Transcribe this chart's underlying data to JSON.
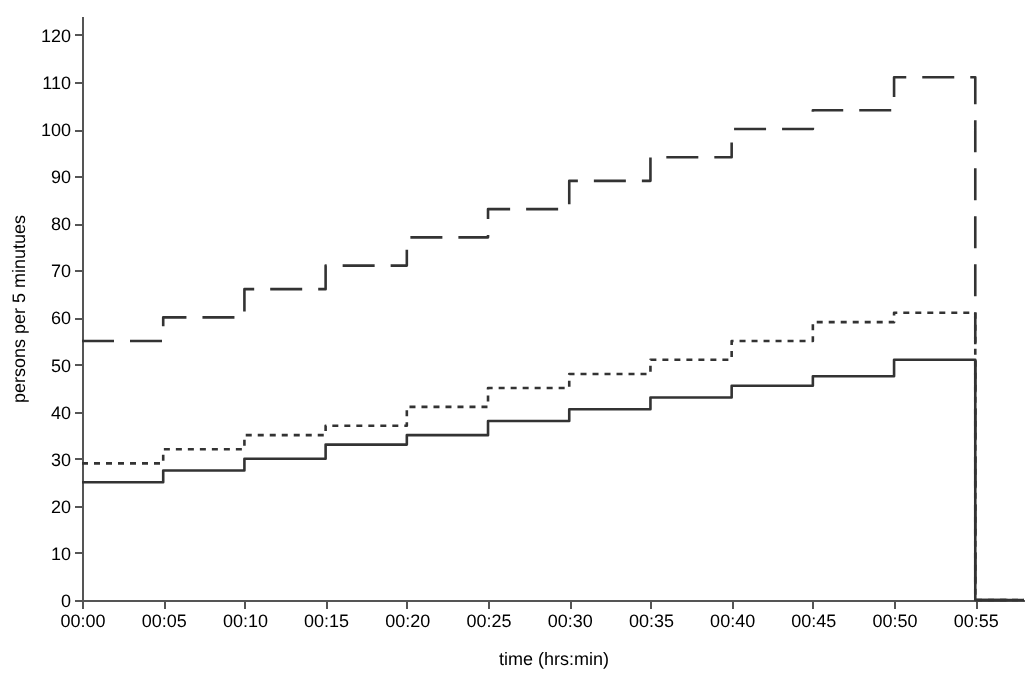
{
  "chart_data": {
    "type": "step",
    "xlabel": "time (hrs:min)",
    "ylabel": "persons per 5 minutues",
    "x": [
      0,
      0.083333,
      0.166667,
      0.25,
      0.333333,
      0.416667,
      0.5,
      0.583333,
      0.666667,
      0.75,
      0.833333,
      0.916667,
      0.966667
    ],
    "series": [
      {
        "color": "#333333",
        "line_style": "dashed",
        "values": [
          55,
          60,
          66,
          71,
          77,
          83,
          89,
          94,
          100,
          104,
          111,
          0,
          0
        ]
      },
      {
        "color": "#333333",
        "line_style": "dotted",
        "values": [
          29,
          32,
          35,
          37,
          41,
          45,
          48,
          51,
          55,
          59,
          61,
          0,
          0
        ]
      },
      {
        "color": "#333333",
        "line_style": "solid",
        "values": [
          25,
          27.5,
          30,
          33,
          35,
          38,
          40.5,
          43,
          45.5,
          47.5,
          51,
          0,
          0
        ]
      }
    ],
    "xlim": [
      0,
      0.966667
    ],
    "xticks": [
      {
        "value": 0,
        "label": "00:00"
      },
      {
        "value": 0.083333,
        "label": "00:05"
      },
      {
        "value": 0.166667,
        "label": "00:10"
      },
      {
        "value": 0.25,
        "label": "00:15"
      },
      {
        "value": 0.333333,
        "label": "00:20"
      },
      {
        "value": 0.416667,
        "label": "00:25"
      },
      {
        "value": 0.5,
        "label": "00:30"
      },
      {
        "value": 0.583333,
        "label": "00:35"
      },
      {
        "value": 0.666667,
        "label": "00:40"
      },
      {
        "value": 0.75,
        "label": "00:45"
      },
      {
        "value": 0.833333,
        "label": "00:50"
      },
      {
        "value": 0.916667,
        "label": "00:55"
      }
    ],
    "ylim": [
      0,
      124
    ],
    "yticks": [
      0,
      10,
      20,
      30,
      40,
      50,
      60,
      70,
      80,
      90,
      100,
      110,
      120
    ],
    "grid": false
  }
}
